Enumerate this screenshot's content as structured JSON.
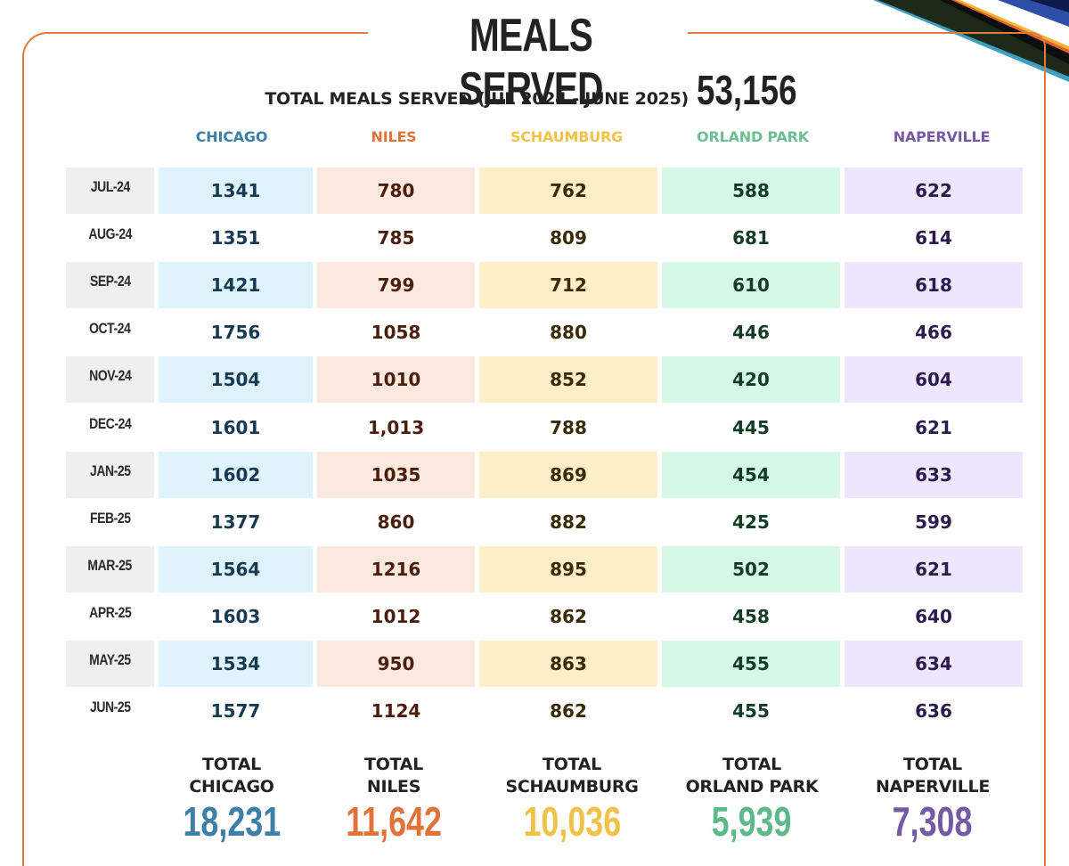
{
  "header": {
    "title": "MEALS SERVED",
    "subtitle": "TOTAL MEALS SERVED (JUL 2024 - JUNE 2025)",
    "grand_total": "53,156"
  },
  "colors": {
    "frame": "#e07a3f",
    "month_shade": "#efefef"
  },
  "locations": [
    {
      "name": "CHICAGO",
      "header_color": "#3d7fa6",
      "fill": "#dff3fd",
      "text": "#153a52",
      "total_label": "TOTAL\nCHICAGO",
      "total": "18,231",
      "total_color": "#3d7fa6"
    },
    {
      "name": "NILES",
      "header_color": "#e0733a",
      "fill": "#fbe8df",
      "text": "#4a1d0c",
      "total_label": "TOTAL\nNILES",
      "total": "11,642",
      "total_color": "#e0733a"
    },
    {
      "name": "SCHAUMBURG",
      "header_color": "#f0c24a",
      "fill": "#fcefc8",
      "text": "#3b2a06",
      "total_label": "TOTAL\nSCHAUMBURG",
      "total": "10,036",
      "total_color": "#f0c24a"
    },
    {
      "name": "ORLAND PARK",
      "header_color": "#6dbf93",
      "fill": "#d6f9e7",
      "text": "#113d26",
      "total_label": "TOTAL\nORLAND PARK",
      "total": "5,939",
      "total_color": "#5db98a"
    },
    {
      "name": "NAPERVILLE",
      "header_color": "#7659a3",
      "fill": "#eee6fc",
      "text": "#2c1b4d",
      "total_label": "TOTAL\nNAPERVILLE",
      "total": "7,308",
      "total_color": "#7659a3"
    }
  ],
  "rows": [
    {
      "month": "JUL-24",
      "values": [
        "1341",
        "780",
        "762",
        "588",
        "622"
      ]
    },
    {
      "month": "AUG-24",
      "values": [
        "1351",
        "785",
        "809",
        "681",
        "614"
      ]
    },
    {
      "month": "SEP-24",
      "values": [
        "1421",
        "799",
        "712",
        "610",
        "618"
      ]
    },
    {
      "month": "OCT-24",
      "values": [
        "1756",
        "1058",
        "880",
        "446",
        "466"
      ]
    },
    {
      "month": "NOV-24",
      "values": [
        "1504",
        "1010",
        "852",
        "420",
        "604"
      ]
    },
    {
      "month": "DEC-24",
      "values": [
        "1601",
        "1,013",
        "788",
        "445",
        "621"
      ]
    },
    {
      "month": "JAN-25",
      "values": [
        "1602",
        "1035",
        "869",
        "454",
        "633"
      ]
    },
    {
      "month": "FEB-25",
      "values": [
        "1377",
        "860",
        "882",
        "425",
        "599"
      ]
    },
    {
      "month": "MAR-25",
      "values": [
        "1564",
        "1216",
        "895",
        "502",
        "621"
      ]
    },
    {
      "month": "APR-25",
      "values": [
        "1603",
        "1012",
        "862",
        "458",
        "640"
      ]
    },
    {
      "month": "MAY-25",
      "values": [
        "1534",
        "950",
        "863",
        "455",
        "634"
      ]
    },
    {
      "month": "JUN-25",
      "values": [
        "1577",
        "1124",
        "862",
        "455",
        "636"
      ]
    }
  ],
  "chart_data": {
    "type": "table",
    "title": "MEALS SERVED",
    "subtitle": "TOTAL MEALS SERVED (JUL 2024 - JUNE 2025) 53,156",
    "columns": [
      "CHICAGO",
      "NILES",
      "SCHAUMBURG",
      "ORLAND PARK",
      "NAPERVILLE"
    ],
    "categories": [
      "JUL-24",
      "AUG-24",
      "SEP-24",
      "OCT-24",
      "NOV-24",
      "DEC-24",
      "JAN-25",
      "FEB-25",
      "MAR-25",
      "APR-25",
      "MAY-25",
      "JUN-25"
    ],
    "series": [
      {
        "name": "CHICAGO",
        "values": [
          1341,
          1351,
          1421,
          1756,
          1504,
          1601,
          1602,
          1377,
          1564,
          1603,
          1534,
          1577
        ],
        "total": 18231
      },
      {
        "name": "NILES",
        "values": [
          780,
          785,
          799,
          1058,
          1010,
          1013,
          1035,
          860,
          1216,
          1012,
          950,
          1124
        ],
        "total": 11642
      },
      {
        "name": "SCHAUMBURG",
        "values": [
          762,
          809,
          712,
          880,
          852,
          788,
          869,
          882,
          895,
          862,
          863,
          862
        ],
        "total": 10036
      },
      {
        "name": "ORLAND PARK",
        "values": [
          588,
          681,
          610,
          446,
          420,
          445,
          454,
          425,
          502,
          458,
          455,
          455
        ],
        "total": 5939
      },
      {
        "name": "NAPERVILLE",
        "values": [
          622,
          614,
          618,
          466,
          604,
          621,
          633,
          599,
          621,
          640,
          634,
          636
        ],
        "total": 7308
      }
    ],
    "grand_total": 53156
  }
}
